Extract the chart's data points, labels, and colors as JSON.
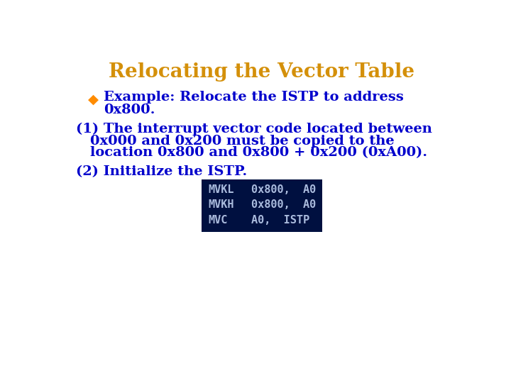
{
  "title": "Relocating the Vector Table",
  "title_color": "#D4900A",
  "title_fontsize": 20,
  "bg_color": "#FFFFFF",
  "bullet_color": "#FF8C00",
  "text_color": "#0000CC",
  "bullet_text_line1": "Example: Relocate the ISTP to address",
  "bullet_text_line2": "0x800.",
  "point1_line1": "(1) The interrupt vector code located between",
  "point1_line2": "0x000 and 0x200 must be copied to the",
  "point1_line3": "location 0x800 and 0x800 + 0x200 (0xA00).",
  "point2": "(2) Initialize the ISTP.",
  "code_bg": "#001040",
  "code_text_color": "#AABBDD",
  "code_lines": [
    [
      "MVKL",
      "0x800,  A0"
    ],
    [
      "MVKH",
      "0x800,  A0"
    ],
    [
      "MVC",
      "A0,  ISTP"
    ]
  ],
  "code_fontsize": 11,
  "main_fontsize": 14,
  "bullet_fontsize": 14
}
